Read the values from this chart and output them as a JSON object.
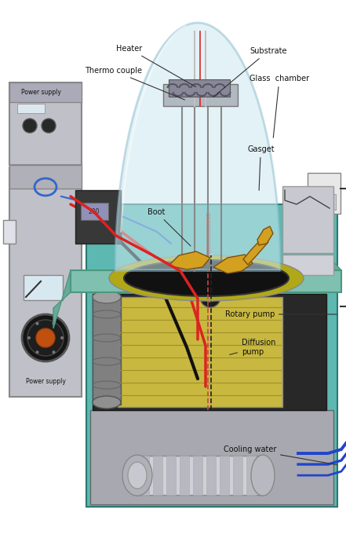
{
  "bg_color": "#ffffff",
  "labels": {
    "heater": "Heater",
    "thermo_couple": "Thermo couple",
    "substrate": "Substrate",
    "glass_chamber": "Glass  chamber",
    "gasget": "Gasget",
    "boot": "Boot",
    "diffusion_pump": "Diffusion\npump",
    "rotary_pump": "Rotary pump",
    "cooling_water": "Cooling water",
    "power_supply_top": "Power supply",
    "power_supply_bot": "Power supply"
  },
  "colors": {
    "glass_dome": "#cce8f0",
    "glass_dome_edge": "#90c0d0",
    "teal_body": "#5cb8b0",
    "table_top": "#80c0b0",
    "left_cabinet": "#c4c4cc",
    "dark_ring": "#1a1a1a",
    "boot_yellow": "#d4a020",
    "wire_red": "#dd2222",
    "wire_blue": "#3366cc",
    "wire_black": "#111111",
    "diffusion_yellow": "#c8b840",
    "text_color": "#111111",
    "ann_line": "#333333",
    "dashed_red": "#cc4444",
    "dashed_black": "#222222"
  }
}
